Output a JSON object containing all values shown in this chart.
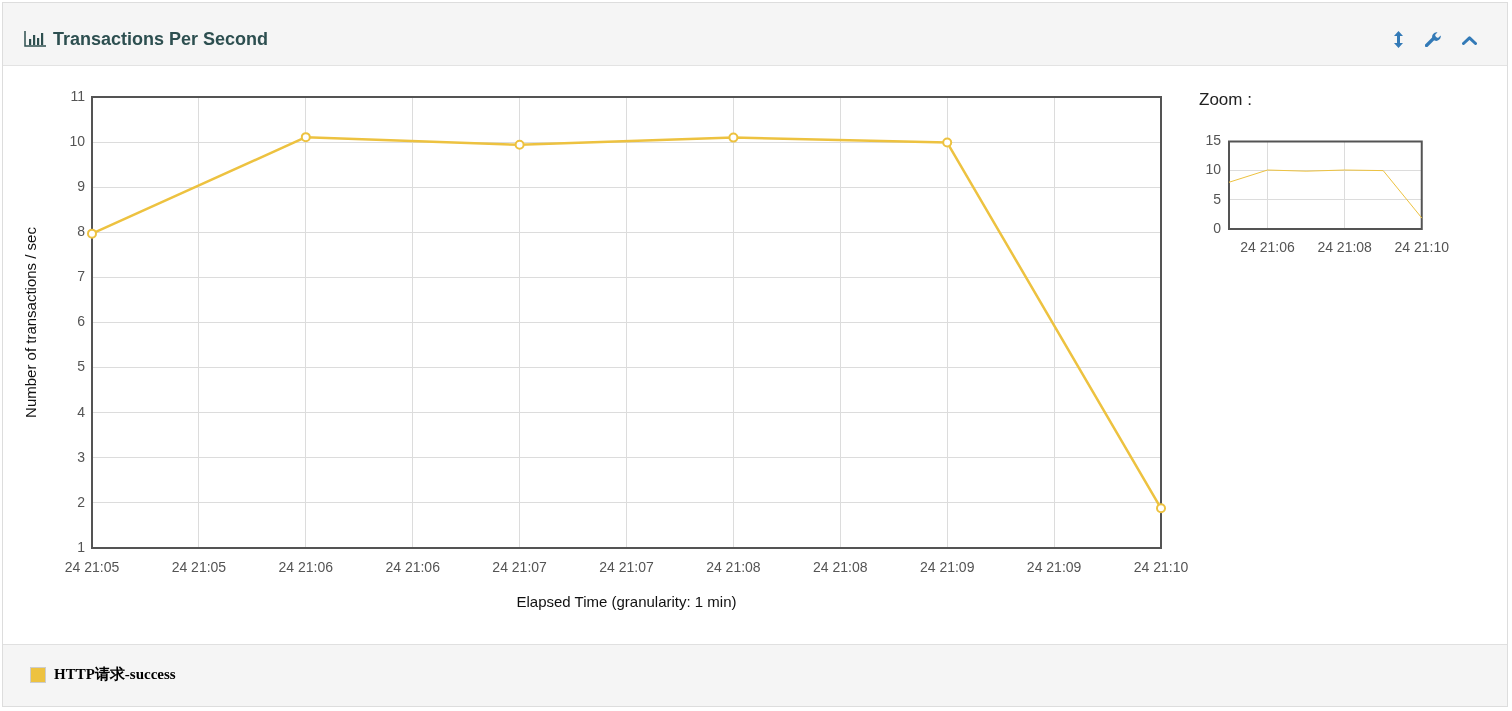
{
  "chart_data": [
    {
      "type": "line",
      "title": "Transactions Per Second",
      "xlabel": "Elapsed Time (granularity: 1 min)",
      "ylabel": "Number of transactions / sec",
      "categories": [
        "24 21:05",
        "24 21:05",
        "24 21:06",
        "24 21:06",
        "24 21:07",
        "24 21:07",
        "24 21:08",
        "24 21:08",
        "24 21:09",
        "24 21:09",
        "24 21:10"
      ],
      "series": [
        {
          "name": "HTTP请求-success",
          "color": "#edc240",
          "values": [
            7.97,
            null,
            10.11,
            null,
            9.94,
            null,
            10.1,
            null,
            9.99,
            null,
            1.88
          ]
        }
      ],
      "ylim": [
        1,
        11
      ],
      "yticks": [
        1,
        2,
        3,
        4,
        5,
        6,
        7,
        8,
        9,
        10,
        11
      ],
      "grid": true,
      "legend": "bottom",
      "marker": "circle"
    },
    {
      "type": "line",
      "title": "Zoom :",
      "categories": [
        null,
        "24 21:06",
        null,
        "24 21:08",
        null,
        "24 21:10"
      ],
      "series": [
        {
          "color": "#edc240",
          "values": [
            8,
            10.1,
            9.9,
            10.1,
            10,
            1.9
          ]
        }
      ],
      "ylim": [
        0,
        15
      ],
      "yticks": [
        0,
        5,
        10,
        15
      ],
      "grid": true
    }
  ]
}
